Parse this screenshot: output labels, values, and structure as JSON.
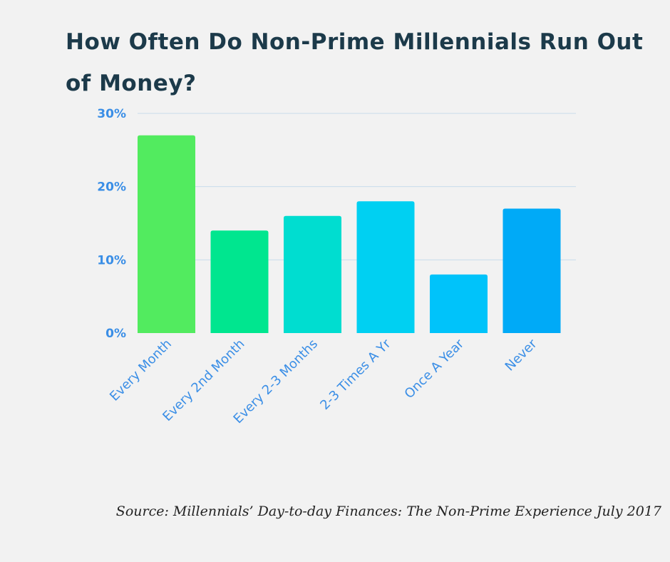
{
  "chart_data": {
    "type": "bar",
    "title": "How Often Do Non-Prime Millennials Run Out of Money?",
    "categories": [
      "Every Month",
      "Every 2nd Month",
      "Every 2-3 Months",
      "2-3 Times A Yr",
      "Once A Year",
      "Never"
    ],
    "values": [
      27,
      14,
      16,
      18,
      8,
      17
    ],
    "unit": "%",
    "ylim": [
      0,
      30
    ],
    "yticks": [
      0,
      10,
      20,
      30
    ],
    "ytick_labels": [
      "0%",
      "10%",
      "20%",
      "30%"
    ],
    "xlabel": "",
    "ylabel": "",
    "grid": true,
    "colors": [
      "#52eb5f",
      "#00e68f",
      "#00ddd0",
      "#00d0f2",
      "#00c3fa",
      "#00aaf7"
    ],
    "tick_color": "#3a8ee6",
    "grid_color": "#c8dceb"
  },
  "source": "Source: Millennials’ Day-to-day Finances: The Non-Prime Experience July 2017"
}
